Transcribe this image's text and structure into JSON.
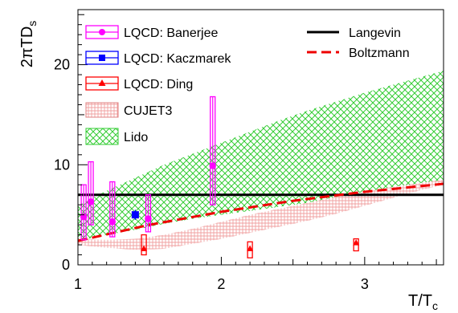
{
  "chart_data": {
    "type": "line",
    "ylabel_prefix": "2πTD",
    "ylabel_sub": "s",
    "xlabel_main": "T/T",
    "xlabel_sub": "c",
    "xlim": [
      1,
      3.55
    ],
    "ylim": [
      0,
      25.5
    ],
    "x_ticks": [
      1,
      2,
      3
    ],
    "y_ticks": [
      0,
      10,
      20
    ],
    "legend_left": [
      "LQCD: Banerjee",
      "LQCD: Kaczmarek",
      "LQCD: Ding",
      "CUJET3",
      "Lido"
    ],
    "legend_right": [
      "Langevin",
      "Boltzmann"
    ],
    "colors": {
      "banerjee": "#ff00ff",
      "kaczmarek": "#0000ff",
      "ding": "#ff0000",
      "cujet3": "#f0a0a0",
      "lido": "#33cc33",
      "langevin": "#000000",
      "boltzmann": "#ee0000"
    },
    "series": [
      {
        "name": "Langevin",
        "x": [
          1.0,
          3.55
        ],
        "y": [
          7.0,
          7.0
        ]
      },
      {
        "name": "Boltzmann",
        "x": [
          1.0,
          1.5,
          2.0,
          2.5,
          3.0,
          3.55
        ],
        "y": [
          2.4,
          4.0,
          5.3,
          6.4,
          7.3,
          8.1
        ]
      },
      {
        "name": "LQCD: Banerjee",
        "points": [
          {
            "x": 1.04,
            "y": 4.8,
            "lo": 2.5,
            "hi": 8.0
          },
          {
            "x": 1.09,
            "y": 6.3,
            "lo": 4.0,
            "hi": 10.3
          },
          {
            "x": 1.24,
            "y": 4.3,
            "lo": 2.8,
            "hi": 8.3
          },
          {
            "x": 1.49,
            "y": 4.6,
            "lo": 3.3,
            "hi": 7.0
          },
          {
            "x": 1.94,
            "y": 9.9,
            "lo": 6.0,
            "hi": 16.8
          }
        ]
      },
      {
        "name": "LQCD: Kaczmarek",
        "points": [
          {
            "x": 1.4,
            "y": 5.0,
            "lo": 4.5,
            "hi": 5.5
          }
        ]
      },
      {
        "name": "LQCD: Ding",
        "points": [
          {
            "x": 1.46,
            "y": 1.6,
            "lo": 1.0,
            "hi": 3.0
          },
          {
            "x": 2.2,
            "y": 1.6,
            "lo": 0.7,
            "hi": 2.3
          },
          {
            "x": 2.94,
            "y": 2.2,
            "lo": 1.4,
            "hi": 2.6
          }
        ]
      },
      {
        "name": "CUJET3",
        "x": [
          1.0,
          1.2,
          1.4,
          1.6,
          1.8,
          2.0,
          2.2,
          2.4,
          2.6,
          2.8,
          3.0,
          3.2,
          3.4,
          3.55
        ],
        "lo": [
          2.0,
          1.7,
          1.5,
          1.6,
          2.1,
          2.6,
          3.2,
          3.8,
          4.4,
          5.1,
          5.9,
          6.7,
          7.5,
          8.0
        ],
        "hi": [
          2.6,
          2.5,
          2.6,
          3.0,
          3.6,
          4.3,
          5.0,
          5.6,
          6.2,
          6.8,
          7.3,
          7.8,
          8.2,
          8.5
        ]
      },
      {
        "name": "Lido",
        "x": [
          1.0,
          1.2,
          1.4,
          1.6,
          1.8,
          2.0,
          2.2,
          2.4,
          2.6,
          2.8,
          3.0,
          3.2,
          3.4,
          3.55
        ],
        "lo": [
          2.4,
          3.0,
          3.5,
          4.1,
          4.6,
          5.0,
          5.4,
          5.8,
          6.2,
          6.7,
          7.1,
          7.5,
          7.8,
          8.0
        ],
        "hi": [
          6.0,
          7.4,
          8.7,
          10.0,
          11.1,
          12.2,
          13.3,
          14.4,
          15.4,
          16.3,
          17.2,
          18.0,
          18.8,
          19.4
        ]
      }
    ]
  }
}
